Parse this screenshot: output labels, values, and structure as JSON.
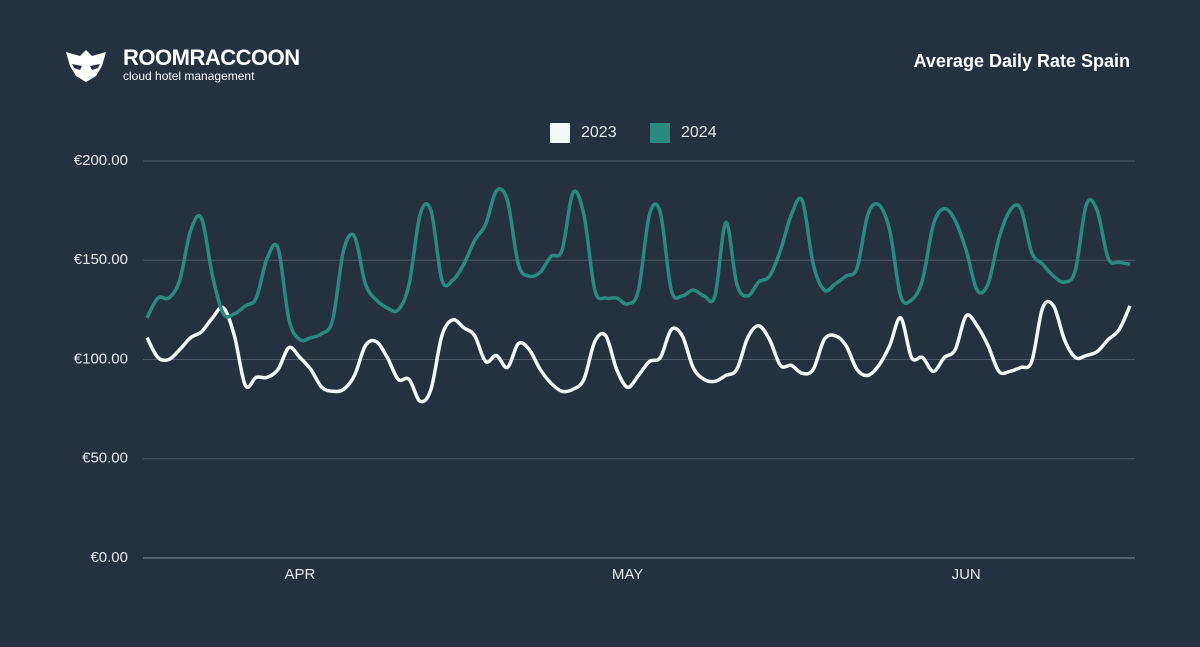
{
  "logo": {
    "name": "ROOMRACCOON",
    "tagline": "cloud hotel management"
  },
  "chart_data": {
    "type": "line",
    "title": "Average Daily Rate Spain",
    "categories": [
      null,
      null,
      null,
      null,
      null,
      null,
      null,
      null,
      null,
      null,
      null,
      null,
      null,
      null,
      "APR",
      null,
      null,
      null,
      null,
      null,
      null,
      null,
      null,
      null,
      null,
      null,
      null,
      null,
      null,
      null,
      null,
      null,
      null,
      null,
      null,
      null,
      null,
      null,
      null,
      null,
      null,
      null,
      null,
      null,
      "MAY",
      null,
      null,
      null,
      null,
      null,
      null,
      null,
      null,
      null,
      null,
      null,
      null,
      null,
      null,
      null,
      null,
      null,
      null,
      null,
      null,
      null,
      null,
      null,
      null,
      null,
      null,
      null,
      null,
      null,
      null,
      "JUN",
      null,
      null,
      null,
      null,
      null,
      null,
      null,
      null,
      null,
      null,
      null,
      null,
      null,
      null,
      null
    ],
    "series": [
      {
        "name": "2023",
        "color": "#f2f7f7",
        "values": [
          111,
          101,
          100,
          105,
          111,
          114,
          121,
          126,
          112,
          87,
          91,
          91,
          95,
          106,
          101,
          95,
          86,
          84,
          85,
          92,
          107,
          109,
          101,
          90,
          90,
          79,
          85,
          112,
          120,
          116,
          112,
          99,
          102,
          96,
          108,
          105,
          95,
          88,
          84,
          85,
          90,
          109,
          112,
          95,
          86,
          92,
          99,
          101,
          115,
          112,
          96,
          90,
          89,
          92,
          95,
          111,
          117,
          110,
          97,
          97,
          93,
          95,
          110,
          112,
          107,
          95,
          92,
          97,
          107,
          121,
          101,
          101,
          94,
          101,
          105,
          122,
          117,
          107,
          94,
          94,
          96,
          99,
          126,
          127,
          110,
          101,
          102,
          104,
          110,
          115,
          127
        ]
      },
      {
        "name": "2024",
        "color": "#2a8a82",
        "values": [
          121,
          131,
          131,
          140,
          165,
          171,
          142,
          123,
          123,
          127,
          131,
          151,
          156,
          120,
          110,
          111,
          113,
          120,
          155,
          162,
          138,
          130,
          126,
          125,
          138,
          173,
          175,
          140,
          140,
          148,
          160,
          168,
          185,
          180,
          148,
          142,
          144,
          152,
          155,
          184,
          173,
          135,
          131,
          131,
          128,
          135,
          173,
          174,
          135,
          132,
          135,
          132,
          132,
          169,
          138,
          132,
          139,
          142,
          155,
          173,
          180,
          148,
          135,
          138,
          142,
          146,
          173,
          178,
          165,
          132,
          130,
          140,
          168,
          176,
          170,
          155,
          135,
          138,
          161,
          175,
          176,
          154,
          148,
          142,
          139,
          145,
          178,
          175,
          151,
          149,
          148
        ]
      }
    ],
    "ylim": [
      0,
      200
    ],
    "yticks": [
      {
        "value": 0,
        "label": "€0.00"
      },
      {
        "value": 50,
        "label": "€50.00"
      },
      {
        "value": 100,
        "label": "€100.00"
      },
      {
        "value": 150,
        "label": "€150.00"
      },
      {
        "value": 200,
        "label": "€200.00"
      }
    ],
    "grid": true,
    "legend": "top"
  }
}
